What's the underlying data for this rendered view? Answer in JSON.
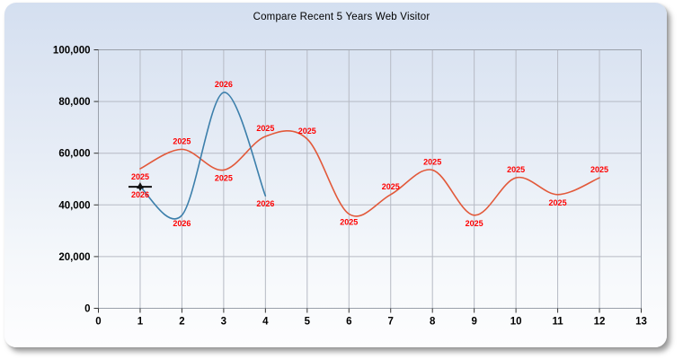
{
  "chart_data": {
    "type": "line",
    "curve": "spline",
    "title": "Compare Recent 5 Years Web Visitor",
    "xlim": [
      0,
      13
    ],
    "ylim": [
      0,
      100000
    ],
    "x_tick_labels": [
      "0",
      "1",
      "2",
      "3",
      "4",
      "5",
      "6",
      "7",
      "8",
      "9",
      "10",
      "11",
      "12",
      "13"
    ],
    "y_tick_values": [
      0,
      20000,
      40000,
      60000,
      80000,
      100000
    ],
    "y_tick_labels": [
      "0",
      "20,000",
      "40,000",
      "60,000",
      "80,000",
      "100,000"
    ],
    "grid": true,
    "legend": "none",
    "grid_color": "#b6bac4",
    "plot_border_color": "#9aa0aa",
    "tick_color": "#333333",
    "axis_text_color": "#000000",
    "point_label_color": "#ff0000",
    "series": [
      {
        "name": "2025",
        "color": "#e2593a",
        "x": [
          1,
          2,
          3,
          4,
          5,
          6,
          7,
          8,
          9,
          10,
          11,
          12
        ],
        "values": [
          54000,
          61500,
          53500,
          66500,
          65500,
          36500,
          44000,
          53500,
          36000,
          50500,
          44000,
          50500
        ],
        "point_labels": [
          "2025",
          "2025",
          "2025",
          "2025",
          "2025",
          "2025",
          "2025",
          "2025",
          "2025",
          "2025",
          "2025",
          "2025"
        ],
        "label_positions": [
          "below",
          "above",
          "below",
          "above",
          "above",
          "below",
          "above",
          "above",
          "below",
          "above",
          "below",
          "above"
        ]
      },
      {
        "name": "2026",
        "color": "#3c7fab",
        "x": [
          1,
          2,
          3,
          4
        ],
        "values": [
          47000,
          36000,
          83500,
          43500
        ],
        "point_labels": [
          "2026",
          "2026",
          "2026",
          "2026"
        ],
        "label_positions": [
          "below",
          "below",
          "above",
          "below"
        ],
        "first_point_marker": {
          "shape": "black-triangle-with-line",
          "color": "#111111",
          "line_half_width": 13
        }
      }
    ]
  }
}
